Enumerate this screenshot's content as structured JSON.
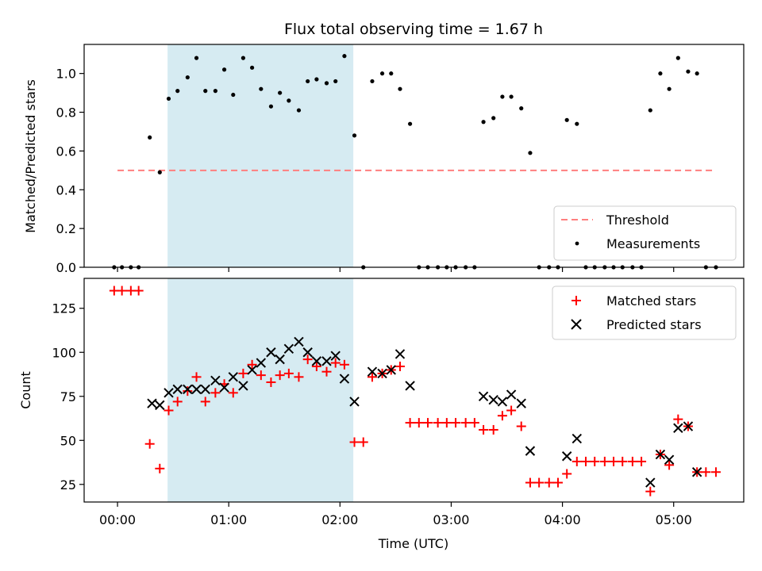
{
  "chart_data": [
    {
      "type": "scatter",
      "title": "Flux total observing time = 1.67 h",
      "xlabel": "",
      "ylabel": "Matched/Predicted stars",
      "xlim": [
        -0.3,
        5.63
      ],
      "ylim": [
        0,
        1.15
      ],
      "yticks": [
        0.0,
        0.2,
        0.4,
        0.6,
        0.8,
        1.0
      ],
      "shaded_region": [
        0.45,
        2.12
      ],
      "legend_position": "lower-right",
      "threshold": {
        "name": "Threshold",
        "value": 0.5,
        "x_range": [
          0,
          5.38
        ],
        "color": "#ff7f7f",
        "style": "dashed"
      },
      "series": [
        {
          "name": "Measurements",
          "marker": "dot",
          "color": "#000000",
          "points": [
            [
              -0.03,
              0.0
            ],
            [
              0.04,
              0.0
            ],
            [
              0.12,
              0.0
            ],
            [
              0.19,
              0.0
            ],
            [
              0.29,
              0.67
            ],
            [
              0.38,
              0.49
            ],
            [
              0.46,
              0.87
            ],
            [
              0.54,
              0.91
            ],
            [
              0.63,
              0.98
            ],
            [
              0.71,
              1.08
            ],
            [
              0.79,
              0.91
            ],
            [
              0.88,
              0.91
            ],
            [
              0.96,
              1.02
            ],
            [
              1.04,
              0.89
            ],
            [
              1.13,
              1.08
            ],
            [
              1.21,
              1.03
            ],
            [
              1.29,
              0.92
            ],
            [
              1.38,
              0.83
            ],
            [
              1.46,
              0.9
            ],
            [
              1.54,
              0.86
            ],
            [
              1.63,
              0.81
            ],
            [
              1.71,
              0.96
            ],
            [
              1.79,
              0.97
            ],
            [
              1.88,
              0.95
            ],
            [
              1.96,
              0.96
            ],
            [
              2.04,
              1.09
            ],
            [
              2.13,
              0.68
            ],
            [
              2.21,
              0.0
            ],
            [
              2.29,
              0.96
            ],
            [
              2.38,
              1.0
            ],
            [
              2.46,
              1.0
            ],
            [
              2.54,
              0.92
            ],
            [
              2.63,
              0.74
            ],
            [
              2.71,
              0.0
            ],
            [
              2.79,
              0.0
            ],
            [
              2.88,
              0.0
            ],
            [
              2.96,
              0.0
            ],
            [
              3.04,
              0.0
            ],
            [
              3.13,
              0.0
            ],
            [
              3.21,
              0.0
            ],
            [
              3.29,
              0.75
            ],
            [
              3.38,
              0.77
            ],
            [
              3.46,
              0.88
            ],
            [
              3.54,
              0.88
            ],
            [
              3.63,
              0.82
            ],
            [
              3.71,
              0.59
            ],
            [
              3.79,
              0.0
            ],
            [
              3.88,
              0.0
            ],
            [
              3.96,
              0.0
            ],
            [
              4.04,
              0.76
            ],
            [
              4.13,
              0.74
            ],
            [
              4.21,
              0.0
            ],
            [
              4.29,
              0.0
            ],
            [
              4.38,
              0.0
            ],
            [
              4.46,
              0.0
            ],
            [
              4.54,
              0.0
            ],
            [
              4.63,
              0.0
            ],
            [
              4.71,
              0.0
            ],
            [
              4.79,
              0.81
            ],
            [
              4.88,
              1.0
            ],
            [
              4.96,
              0.92
            ],
            [
              5.04,
              1.08
            ],
            [
              5.13,
              1.01
            ],
            [
              5.21,
              1.0
            ],
            [
              5.29,
              0.0
            ],
            [
              5.38,
              0.0
            ]
          ]
        }
      ]
    },
    {
      "type": "scatter",
      "title": "",
      "xlabel": "Time (UTC)",
      "ylabel": "Count",
      "xlim": [
        -0.3,
        5.63
      ],
      "ylim": [
        15,
        142
      ],
      "yticks": [
        25,
        50,
        75,
        100,
        125
      ],
      "xticks": [
        {
          "value": 0,
          "label": "00:00"
        },
        {
          "value": 1,
          "label": "01:00"
        },
        {
          "value": 2,
          "label": "02:00"
        },
        {
          "value": 3,
          "label": "03:00"
        },
        {
          "value": 4,
          "label": "04:00"
        },
        {
          "value": 5,
          "label": "05:00"
        }
      ],
      "shaded_region": [
        0.45,
        2.12
      ],
      "legend_position": "upper-right",
      "series": [
        {
          "name": "Matched stars",
          "marker": "plus",
          "color": "#ff0000",
          "points": [
            [
              -0.03,
              135
            ],
            [
              0.04,
              135
            ],
            [
              0.12,
              135
            ],
            [
              0.19,
              135
            ],
            [
              0.29,
              48
            ],
            [
              0.38,
              34
            ],
            [
              0.46,
              67
            ],
            [
              0.54,
              72
            ],
            [
              0.63,
              78
            ],
            [
              0.71,
              86
            ],
            [
              0.79,
              72
            ],
            [
              0.88,
              77
            ],
            [
              0.96,
              82
            ],
            [
              1.04,
              77
            ],
            [
              1.13,
              88
            ],
            [
              1.21,
              93
            ],
            [
              1.29,
              87
            ],
            [
              1.38,
              83
            ],
            [
              1.46,
              87
            ],
            [
              1.54,
              88
            ],
            [
              1.63,
              86
            ],
            [
              1.71,
              96
            ],
            [
              1.79,
              92
            ],
            [
              1.88,
              89
            ],
            [
              1.96,
              94
            ],
            [
              2.04,
              93
            ],
            [
              2.13,
              49
            ],
            [
              2.21,
              49
            ],
            [
              2.29,
              86
            ],
            [
              2.38,
              88
            ],
            [
              2.46,
              90
            ],
            [
              2.54,
              92
            ],
            [
              2.63,
              60
            ],
            [
              2.71,
              60
            ],
            [
              2.79,
              60
            ],
            [
              2.88,
              60
            ],
            [
              2.96,
              60
            ],
            [
              3.04,
              60
            ],
            [
              3.13,
              60
            ],
            [
              3.21,
              60
            ],
            [
              3.29,
              56
            ],
            [
              3.38,
              56
            ],
            [
              3.46,
              64
            ],
            [
              3.54,
              67
            ],
            [
              3.63,
              58
            ],
            [
              3.71,
              26
            ],
            [
              3.79,
              26
            ],
            [
              3.88,
              26
            ],
            [
              3.96,
              26
            ],
            [
              4.04,
              31
            ],
            [
              4.13,
              38
            ],
            [
              4.21,
              38
            ],
            [
              4.29,
              38
            ],
            [
              4.38,
              38
            ],
            [
              4.46,
              38
            ],
            [
              4.54,
              38
            ],
            [
              4.63,
              38
            ],
            [
              4.71,
              38
            ],
            [
              4.79,
              21
            ],
            [
              4.88,
              42
            ],
            [
              4.96,
              36
            ],
            [
              5.04,
              62
            ],
            [
              5.13,
              58
            ],
            [
              5.21,
              32
            ],
            [
              5.29,
              32
            ],
            [
              5.38,
              32
            ]
          ]
        },
        {
          "name": "Predicted stars",
          "marker": "x",
          "color": "#000000",
          "points": [
            [
              0.31,
              71
            ],
            [
              0.38,
              70
            ],
            [
              0.46,
              77
            ],
            [
              0.54,
              79
            ],
            [
              0.63,
              79
            ],
            [
              0.71,
              79
            ],
            [
              0.79,
              79
            ],
            [
              0.88,
              84
            ],
            [
              0.96,
              80
            ],
            [
              1.04,
              86
            ],
            [
              1.13,
              81
            ],
            [
              1.21,
              90
            ],
            [
              1.29,
              94
            ],
            [
              1.38,
              100
            ],
            [
              1.46,
              96
            ],
            [
              1.54,
              102
            ],
            [
              1.63,
              106
            ],
            [
              1.71,
              100
            ],
            [
              1.79,
              95
            ],
            [
              1.88,
              95
            ],
            [
              1.96,
              98
            ],
            [
              2.04,
              85
            ],
            [
              2.13,
              72
            ],
            [
              2.29,
              89
            ],
            [
              2.38,
              88
            ],
            [
              2.46,
              90
            ],
            [
              2.54,
              99
            ],
            [
              2.63,
              81
            ],
            [
              3.29,
              75
            ],
            [
              3.38,
              73
            ],
            [
              3.46,
              72
            ],
            [
              3.54,
              76
            ],
            [
              3.63,
              71
            ],
            [
              3.71,
              44
            ],
            [
              4.04,
              41
            ],
            [
              4.13,
              51
            ],
            [
              4.79,
              26
            ],
            [
              4.88,
              42
            ],
            [
              4.96,
              39
            ],
            [
              5.04,
              57
            ],
            [
              5.13,
              58
            ],
            [
              5.21,
              32
            ]
          ]
        }
      ]
    }
  ],
  "colors": {
    "shade": "#add8e6",
    "threshold": "#ff7f7f",
    "matched": "#ff0000",
    "predicted": "#000000",
    "measurements": "#000000"
  }
}
